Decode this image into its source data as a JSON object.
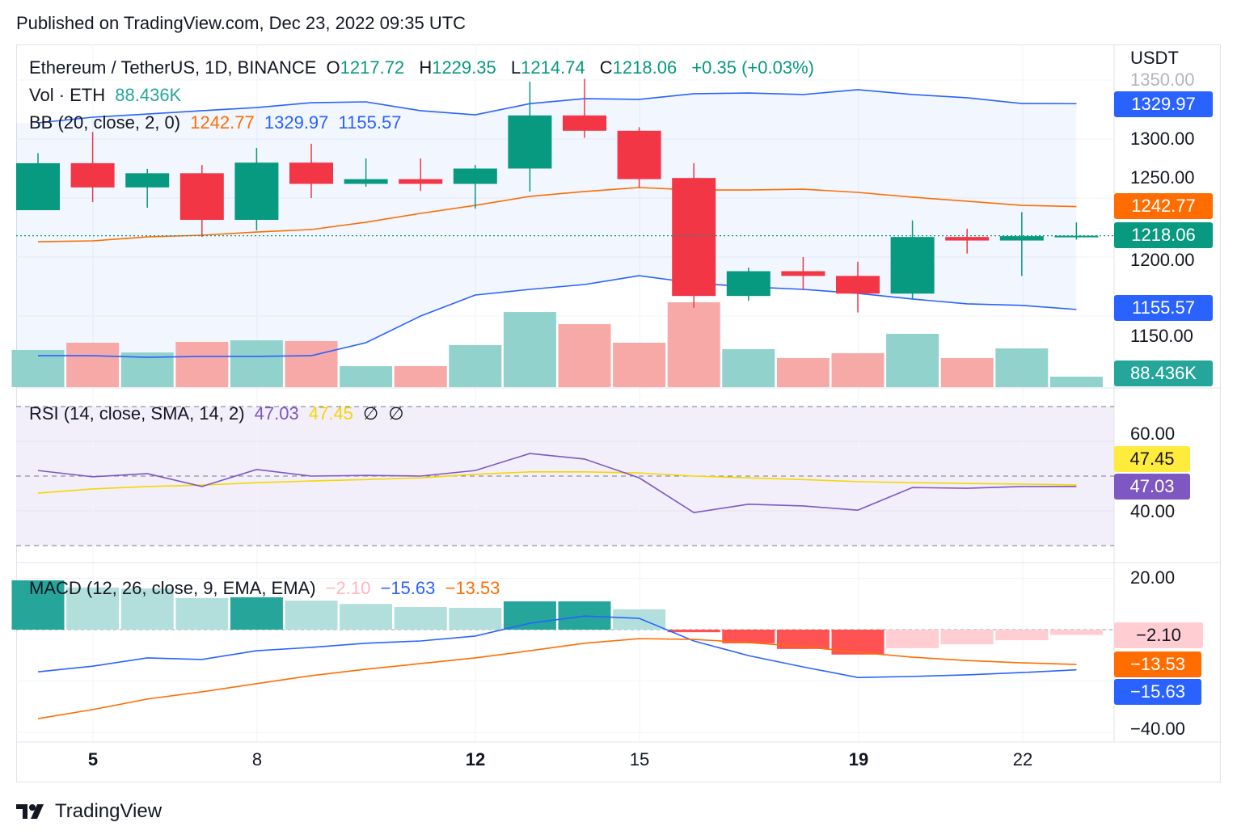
{
  "published": "Published on TradingView.com, Dec 23, 2022 09:35 UTC",
  "legend": {
    "symbol": "Ethereum / TetherUS, 1D, BINANCE",
    "o_label": "O",
    "o": "1217.72",
    "h_label": "H",
    "h": "1229.35",
    "l_label": "L",
    "l": "1214.74",
    "c_label": "C",
    "c": "1218.06",
    "change": "+0.35 (+0.03%)",
    "vol_label": "Vol · ETH",
    "vol": "88.436K",
    "bb_label": "BB (20, close, 2, 0)",
    "bb_basis": "1242.77",
    "bb_upper": "1329.97",
    "bb_lower": "1155.57",
    "rsi_label": "RSI (14, close, SMA, 14, 2)",
    "rsi": "47.03",
    "rsi_sma": "47.45",
    "rsi_extra1": "∅",
    "rsi_extra2": "∅",
    "macd_label": "MACD (12, 26, close, 9, EMA, EMA)",
    "macd_hist": "−2.10",
    "macd": "−15.63",
    "macd_signal": "−13.53"
  },
  "price_axis": {
    "currency": "USDT",
    "ticks": [
      "1350.00",
      "1300.00",
      "1250.00",
      "1200.00",
      "1150.00"
    ],
    "badges": {
      "bb_upper": "1329.97",
      "bb_basis": "1242.77",
      "last": "1218.06",
      "bb_lower": "1155.57",
      "volume": "88.436K"
    }
  },
  "rsi_axis": {
    "ticks": [
      "60.00",
      "40.00"
    ],
    "badges": {
      "sma": "47.45",
      "rsi": "47.03"
    }
  },
  "macd_axis": {
    "ticks": [
      "20.00",
      "−40.00"
    ],
    "badges": {
      "hist": "−2.10",
      "signal": "−13.53",
      "macd": "−15.63"
    }
  },
  "time_axis": [
    {
      "label": "5",
      "bold": true
    },
    {
      "label": "8",
      "bold": false
    },
    {
      "label": "12",
      "bold": true
    },
    {
      "label": "15",
      "bold": false
    },
    {
      "label": "19",
      "bold": true
    },
    {
      "label": "22",
      "bold": false
    }
  ],
  "footer": {
    "brand": "TradingView"
  },
  "colors": {
    "up": "#089981",
    "down": "#f23645",
    "bb_basis": "#ff6d00",
    "bb_band": "#2962ff",
    "rsi": "#7e57c2",
    "rsi_sma": "#f7d600",
    "macd": "#2962ff",
    "signal": "#ff6d00"
  },
  "chart_data": {
    "type": "candlestick",
    "dates": [
      "Dec 4",
      "Dec 5",
      "Dec 6",
      "Dec 7",
      "Dec 8",
      "Dec 9",
      "Dec 10",
      "Dec 11",
      "Dec 12",
      "Dec 13",
      "Dec 14",
      "Dec 15",
      "Dec 16",
      "Dec 17",
      "Dec 18",
      "Dec 19",
      "Dec 20",
      "Dec 21",
      "Dec 22",
      "Dec 23"
    ],
    "ohlc": [
      [
        1239.7,
        1288,
        1240,
        1279.5
      ],
      [
        1279.5,
        1306,
        1246.6,
        1259
      ],
      [
        1259,
        1274.7,
        1241.8,
        1271
      ],
      [
        1271,
        1278,
        1217,
        1231.5
      ],
      [
        1231.5,
        1292.5,
        1222.6,
        1280
      ],
      [
        1280,
        1296,
        1250,
        1262
      ],
      [
        1262,
        1283.5,
        1259.6,
        1266
      ],
      [
        1266,
        1283.5,
        1256,
        1262
      ],
      [
        1262,
        1278,
        1241,
        1275
      ],
      [
        1275,
        1348.6,
        1255.5,
        1320
      ],
      [
        1320,
        1351,
        1301,
        1307
      ],
      [
        1307,
        1310,
        1259,
        1266
      ],
      [
        1267,
        1279.5,
        1157,
        1167
      ],
      [
        1167,
        1191,
        1163,
        1188
      ],
      [
        1188,
        1200,
        1172,
        1184
      ],
      [
        1184,
        1196,
        1153,
        1169
      ],
      [
        1169,
        1231,
        1164,
        1217
      ],
      [
        1217,
        1224,
        1203,
        1214
      ],
      [
        1214,
        1238,
        1184,
        1217.72
      ],
      [
        1217.72,
        1229.35,
        1214.74,
        1218.06
      ]
    ],
    "volume_k": [
      313,
      374,
      292,
      381,
      394,
      388,
      177,
      177,
      354,
      632,
      530,
      374,
      714,
      320,
      245,
      286,
      449,
      245,
      326,
      88.436
    ],
    "bb_upper": [
      1313.7,
      1318.5,
      1321.2,
      1324,
      1326.7,
      1330.8,
      1331.5,
      1324,
      1320.5,
      1330,
      1334.2,
      1333.6,
      1338.4,
      1339,
      1337.7,
      1341.8,
      1337.7,
      1335,
      1330.1,
      1329.97
    ],
    "bb_basis": [
      1213,
      1213.7,
      1217.1,
      1218.5,
      1221.2,
      1223.3,
      1229.5,
      1237,
      1243.8,
      1251.4,
      1255.5,
      1258.9,
      1256.8,
      1256.8,
      1257.5,
      1254.8,
      1250.7,
      1247.3,
      1243.8,
      1242.77
    ],
    "bb_lower": [
      1116.4,
      1116.4,
      1115,
      1115.8,
      1115.8,
      1116.4,
      1127.4,
      1150,
      1167.8,
      1172.6,
      1176.7,
      1184.2,
      1178,
      1174.7,
      1172.6,
      1169.2,
      1164.4,
      1160.3,
      1159,
      1155.57
    ],
    "rsi": [
      51.6,
      49.8,
      50.7,
      47,
      51.9,
      50,
      50.2,
      50,
      51.6,
      56.5,
      54.9,
      49.5,
      39.5,
      41.9,
      41.4,
      40.2,
      46.7,
      46.5,
      47,
      47.03
    ],
    "rsi_sma": [
      45.1,
      46.3,
      47,
      47.4,
      48.1,
      48.6,
      49,
      49.5,
      50.5,
      51.2,
      51.2,
      50.9,
      50,
      49.5,
      49,
      48.4,
      48.1,
      47.9,
      47.7,
      47.45
    ],
    "rsi_bands": [
      70,
      50,
      30
    ],
    "macd_hist": [
      20.5,
      16.4,
      16,
      12.3,
      12.6,
      11.3,
      10,
      8.8,
      8.5,
      11,
      11,
      7.9,
      -1,
      -5.3,
      -7.5,
      -9.7,
      -7.2,
      -5.7,
      -4.1,
      -2.1
    ],
    "macd": [
      -16.4,
      -14.2,
      -11,
      -11.6,
      -8.2,
      -6.9,
      -5.3,
      -4.4,
      -2.5,
      2.5,
      5.3,
      4.4,
      -4.4,
      -10.1,
      -14.5,
      -18.6,
      -18.2,
      -17.6,
      -16.7,
      -15.63
    ],
    "signal": [
      -34.6,
      -31.1,
      -27,
      -24.2,
      -21,
      -17.9,
      -15.4,
      -13.2,
      -11,
      -8.2,
      -5.3,
      -3.5,
      -3.8,
      -5,
      -6.6,
      -8.8,
      -10.7,
      -12,
      -12.9,
      -13.53
    ],
    "price_ylim": [
      1100,
      1360
    ],
    "rsi_ylim": [
      30,
      70
    ],
    "macd_ylim": [
      -40,
      20
    ],
    "grid": true
  }
}
